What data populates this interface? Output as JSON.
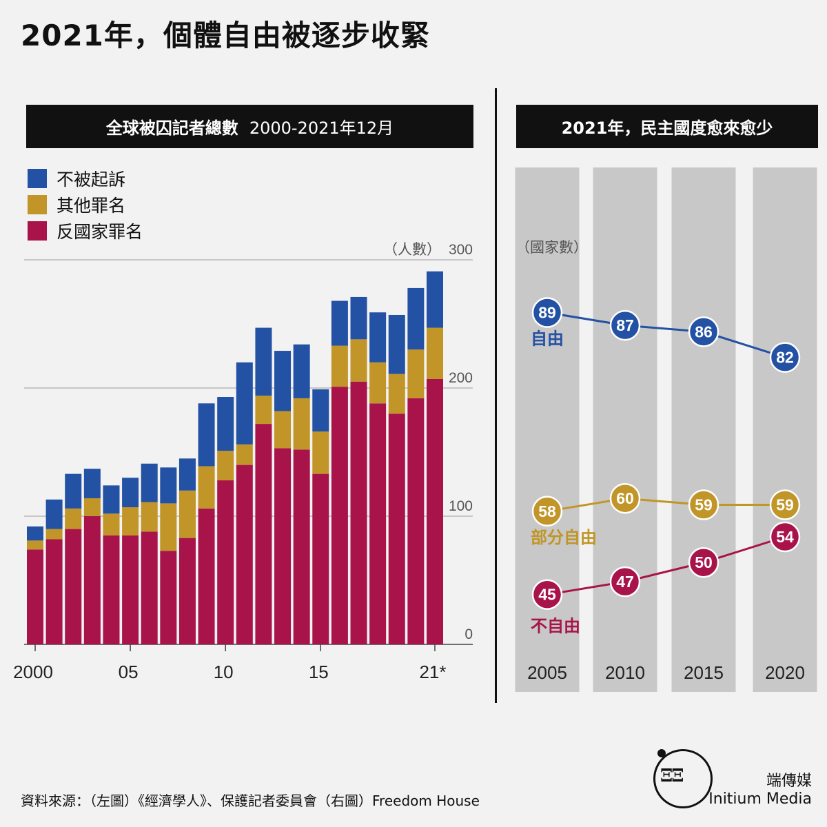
{
  "title": "2021年，個體自由被逐步收緊",
  "left_panel": {
    "header": "全球被囚記者總數",
    "header_sub": "2000-2021年12月",
    "unit": "（人數）"
  },
  "right_panel": {
    "header": "2021年，民主國度愈來愈少",
    "unit": "（國家數）"
  },
  "source": "資料來源：（左圖）《經濟學人》、保護記者委員會（右圖）Freedom House",
  "brand": {
    "glyph": "ΞΞ",
    "cn": "端傳媒",
    "en": "Initium Media"
  },
  "colors": {
    "blue": "#2351a3",
    "gold": "#c19527",
    "crimson": "#a8144a",
    "bg": "#f2f2f2",
    "column_bg": "#c8c8c8"
  },
  "chart_data": [
    {
      "type": "bar",
      "stacked": true,
      "title": "全球被囚記者總數 2000-2021年12月",
      "ylabel": "（人數）",
      "ylim": [
        0,
        300
      ],
      "y_ticks": [
        "0",
        "100",
        "200",
        "300"
      ],
      "x_tick_labels": [
        "2000",
        "05",
        "10",
        "15",
        "21*"
      ],
      "categories": [
        "2000",
        "2001",
        "2002",
        "2003",
        "2004",
        "2005",
        "2006",
        "2007",
        "2008",
        "2009",
        "2010",
        "2011",
        "2012",
        "2013",
        "2014",
        "2015",
        "2016",
        "2017",
        "2018",
        "2019",
        "2020",
        "2021"
      ],
      "series": [
        {
          "name": "反國家罪名",
          "color": "#a8144a",
          "values": [
            74,
            82,
            90,
            100,
            85,
            85,
            88,
            73,
            83,
            106,
            128,
            140,
            172,
            153,
            152,
            133,
            201,
            205,
            188,
            180,
            192,
            207
          ]
        },
        {
          "name": "其他罪名",
          "color": "#c19527",
          "values": [
            7,
            8,
            16,
            14,
            17,
            22,
            23,
            37,
            37,
            33,
            23,
            16,
            22,
            29,
            40,
            33,
            32,
            33,
            32,
            31,
            38,
            40
          ]
        },
        {
          "name": "不被起訴",
          "color": "#2351a3",
          "values": [
            11,
            23,
            27,
            23,
            22,
            23,
            30,
            28,
            25,
            49,
            42,
            64,
            53,
            47,
            42,
            33,
            35,
            33,
            39,
            46,
            48,
            44
          ]
        }
      ],
      "legend": "top-left",
      "grid": true
    },
    {
      "type": "line",
      "title": "2021年，民主國度愈來愈少",
      "ylabel": "（國家數）",
      "x": [
        "2005",
        "2010",
        "2015",
        "2020"
      ],
      "series": [
        {
          "name": "自由",
          "color": "#2351a3",
          "values": [
            89,
            87,
            86,
            82
          ]
        },
        {
          "name": "部分自由",
          "color": "#c19527",
          "values": [
            58,
            60,
            59,
            59
          ]
        },
        {
          "name": "不自由",
          "color": "#a8144a",
          "values": [
            45,
            47,
            50,
            54
          ]
        }
      ]
    }
  ]
}
